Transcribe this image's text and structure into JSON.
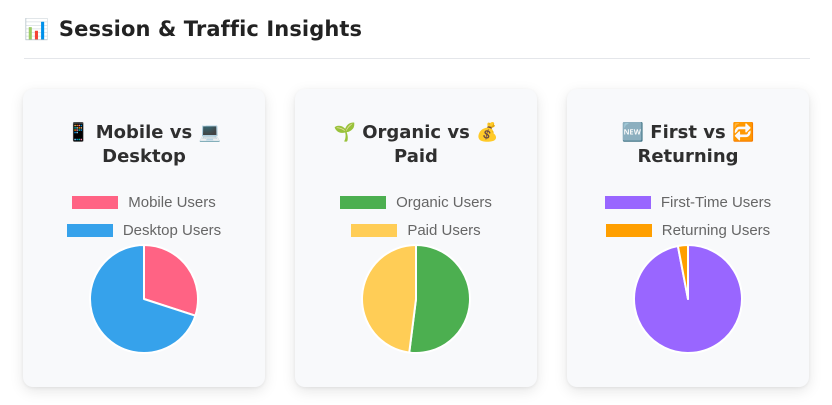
{
  "header": {
    "icon": "bar-chart-emoji",
    "emoji": "📊",
    "title": "Session & Traffic Insights"
  },
  "cards": [
    {
      "title_line1": "📱 Mobile vs 💻",
      "title_line2": "Desktop",
      "legend": [
        {
          "label": "Mobile Users",
          "color": "#ff6384"
        },
        {
          "label": "Desktop Users",
          "color": "#36a2eb"
        }
      ]
    },
    {
      "title_line1": "🌱 Organic vs 💰",
      "title_line2": "Paid",
      "legend": [
        {
          "label": "Organic Users",
          "color": "#4caf50"
        },
        {
          "label": "Paid Users",
          "color": "#ffcd56"
        }
      ]
    },
    {
      "title_line1": "🆕 First vs 🔁",
      "title_line2": "Returning",
      "legend": [
        {
          "label": "First-Time Users",
          "color": "#9966ff"
        },
        {
          "label": "Returning Users",
          "color": "#ff9f00"
        }
      ]
    }
  ],
  "chart_data": [
    {
      "type": "pie",
      "title": "📱 Mobile vs 💻 Desktop",
      "categories": [
        "Mobile Users",
        "Desktop Users"
      ],
      "values": [
        30,
        70
      ],
      "colors": [
        "#ff6384",
        "#36a2eb"
      ],
      "legend": "top"
    },
    {
      "type": "pie",
      "title": "🌱 Organic vs 💰 Paid",
      "categories": [
        "Organic Users",
        "Paid Users"
      ],
      "values": [
        52,
        48
      ],
      "colors": [
        "#4caf50",
        "#ffcd56"
      ],
      "legend": "top"
    },
    {
      "type": "pie",
      "title": "🆕 First vs 🔁 Returning",
      "categories": [
        "First-Time Users",
        "Returning Users"
      ],
      "values": [
        97,
        3
      ],
      "colors": [
        "#9966ff",
        "#ff9f00"
      ],
      "legend": "top"
    }
  ]
}
